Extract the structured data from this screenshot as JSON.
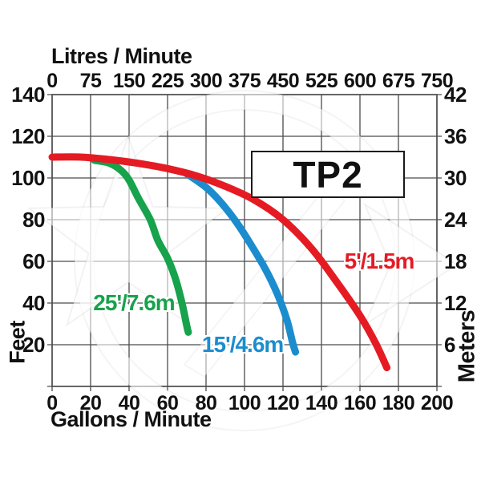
{
  "title_box": {
    "label": "TP2"
  },
  "colors": {
    "red": "#e51b24",
    "green": "#17a24c",
    "blue": "#1b8dce",
    "grid": "#4c4c4c",
    "text": "#111111"
  },
  "chart_data": {
    "type": "line",
    "title": "TP2",
    "grid": true,
    "x_axis_bottom": {
      "label": "Gallons / Minute",
      "range": [
        0,
        200
      ],
      "ticks": [
        0,
        20,
        40,
        60,
        80,
        100,
        120,
        140,
        160,
        180,
        200
      ]
    },
    "x_axis_top": {
      "label": "Litres / Minute",
      "range": [
        0,
        750
      ],
      "ticks": [
        0,
        75,
        150,
        225,
        300,
        375,
        450,
        525,
        600,
        675,
        750
      ]
    },
    "y_axis_left": {
      "label": "Feet",
      "range": [
        0,
        140
      ],
      "ticks": [
        20,
        40,
        60,
        80,
        100,
        120,
        140
      ]
    },
    "y_axis_right": {
      "label": "Meters",
      "range": [
        0,
        42
      ],
      "ticks": [
        6,
        12,
        18,
        24,
        30,
        36,
        42
      ]
    },
    "series": [
      {
        "name": "25'/7.6m",
        "color_key": "green",
        "label_anchor": {
          "gpm": 42.5,
          "feet": 40
        },
        "points": [
          [
            22,
            108.5
          ],
          [
            30,
            107
          ],
          [
            36,
            103.5
          ],
          [
            40,
            99
          ],
          [
            45,
            90
          ],
          [
            51,
            80
          ],
          [
            55,
            70
          ],
          [
            60,
            61.5
          ],
          [
            64,
            52
          ],
          [
            67.5,
            40
          ],
          [
            70,
            29
          ],
          [
            70.8,
            26
          ]
        ]
      },
      {
        "name": "15'/4.6m",
        "color_key": "blue",
        "label_anchor": {
          "gpm": 99,
          "feet": 20
        },
        "points": [
          [
            70,
            102
          ],
          [
            80,
            95.5
          ],
          [
            88,
            88
          ],
          [
            96,
            78.5
          ],
          [
            104,
            67
          ],
          [
            111,
            56
          ],
          [
            117,
            44.5
          ],
          [
            122,
            32
          ],
          [
            125,
            21
          ],
          [
            126.5,
            16.5
          ]
        ]
      },
      {
        "name": "5'/1.5m",
        "color_key": "red",
        "label_anchor": {
          "gpm": 170,
          "feet": 60
        },
        "points": [
          [
            0,
            110
          ],
          [
            15,
            110
          ],
          [
            30,
            108.8
          ],
          [
            45,
            107
          ],
          [
            60,
            104.5
          ],
          [
            75,
            101
          ],
          [
            90,
            96
          ],
          [
            105,
            89.5
          ],
          [
            120,
            80
          ],
          [
            135,
            66
          ],
          [
            148,
            50
          ],
          [
            160,
            34
          ],
          [
            168,
            21
          ],
          [
            174,
            9
          ]
        ]
      }
    ]
  }
}
